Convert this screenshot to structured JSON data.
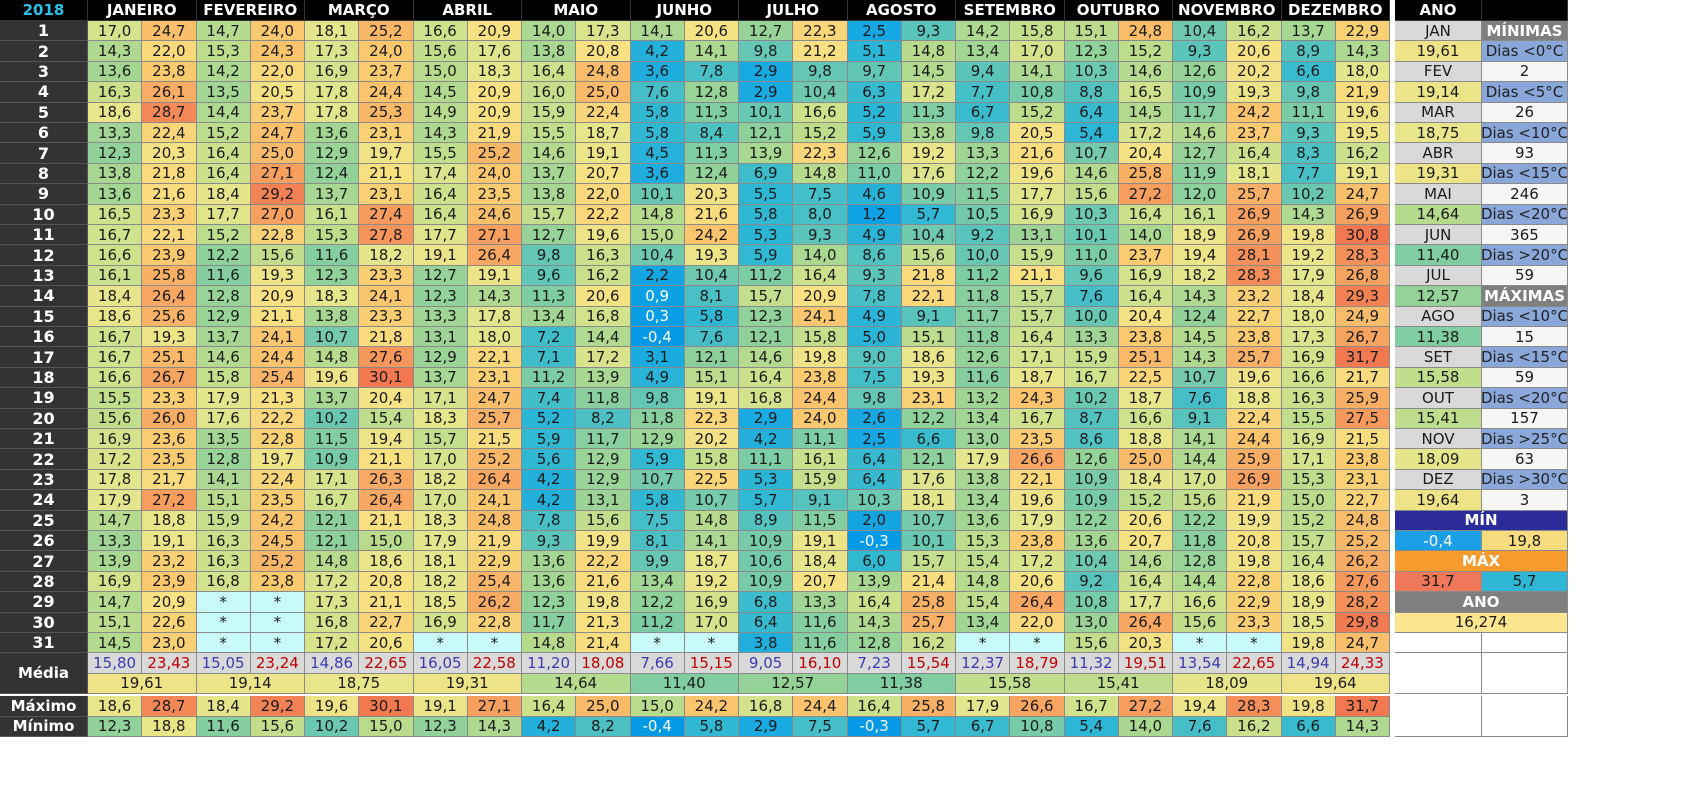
{
  "year": "2018",
  "months": [
    "JANEIRO",
    "FEVEREIRO",
    "MARÇO",
    "ABRIL",
    "MAIO",
    "JUNHO",
    "JULHO",
    "AGOSTO",
    "SETEMBRO",
    "OUTUBRO",
    "NOVEMBRO",
    "DEZEMBRO"
  ],
  "ano_header": "ANO",
  "rows": [
    [
      "17,0",
      "24,7",
      "14,7",
      "24,0",
      "18,1",
      "25,2",
      "16,6",
      "20,9",
      "14,0",
      "17,3",
      "14,1",
      "20,6",
      "12,7",
      "22,3",
      "2,5",
      "9,3",
      "14,2",
      "15,8",
      "15,1",
      "24,8",
      "10,4",
      "16,2",
      "13,7",
      "22,9"
    ],
    [
      "14,3",
      "22,0",
      "15,3",
      "24,3",
      "17,3",
      "24,0",
      "15,6",
      "17,6",
      "13,8",
      "20,8",
      "4,2",
      "14,1",
      "9,8",
      "21,2",
      "5,1",
      "14,8",
      "13,4",
      "17,0",
      "12,3",
      "15,2",
      "9,3",
      "20,6",
      "8,9",
      "14,3"
    ],
    [
      "13,6",
      "23,8",
      "14,2",
      "22,0",
      "16,9",
      "23,7",
      "15,0",
      "18,3",
      "16,4",
      "24,8",
      "3,6",
      "7,8",
      "2,9",
      "9,8",
      "9,7",
      "14,5",
      "9,4",
      "14,1",
      "10,3",
      "14,6",
      "12,6",
      "20,2",
      "6,6",
      "18,0"
    ],
    [
      "16,3",
      "26,1",
      "13,5",
      "20,5",
      "17,8",
      "24,4",
      "14,5",
      "20,9",
      "16,0",
      "25,0",
      "7,6",
      "12,8",
      "2,9",
      "10,4",
      "6,3",
      "17,2",
      "7,7",
      "10,8",
      "8,8",
      "16,5",
      "10,9",
      "19,3",
      "9,8",
      "21,9"
    ],
    [
      "18,6",
      "28,7",
      "14,4",
      "23,7",
      "17,8",
      "25,3",
      "14,9",
      "20,9",
      "15,9",
      "22,4",
      "5,8",
      "11,3",
      "10,1",
      "16,6",
      "5,2",
      "11,3",
      "6,7",
      "15,2",
      "6,4",
      "14,5",
      "11,7",
      "24,2",
      "11,1",
      "19,6"
    ],
    [
      "13,3",
      "22,4",
      "15,2",
      "24,7",
      "13,6",
      "23,1",
      "14,3",
      "21,9",
      "15,5",
      "18,7",
      "5,8",
      "8,4",
      "12,1",
      "15,2",
      "5,9",
      "13,8",
      "9,8",
      "20,5",
      "5,4",
      "17,2",
      "14,6",
      "23,7",
      "9,3",
      "19,5"
    ],
    [
      "12,3",
      "20,3",
      "16,4",
      "25,0",
      "12,9",
      "19,7",
      "15,5",
      "25,2",
      "14,6",
      "19,1",
      "4,5",
      "11,3",
      "13,9",
      "22,3",
      "12,6",
      "19,2",
      "13,3",
      "21,6",
      "10,7",
      "20,4",
      "12,7",
      "16,4",
      "8,3",
      "16,2"
    ],
    [
      "13,8",
      "21,8",
      "16,4",
      "27,1",
      "12,4",
      "21,1",
      "17,4",
      "24,0",
      "13,7",
      "20,7",
      "3,6",
      "12,4",
      "6,9",
      "14,8",
      "11,0",
      "17,6",
      "12,2",
      "19,6",
      "14,6",
      "25,8",
      "11,9",
      "18,1",
      "7,7",
      "19,1"
    ],
    [
      "13,6",
      "21,6",
      "18,4",
      "29,2",
      "13,7",
      "23,1",
      "16,4",
      "23,5",
      "13,8",
      "22,0",
      "10,1",
      "20,3",
      "5,5",
      "7,5",
      "4,6",
      "10,9",
      "11,5",
      "17,7",
      "15,6",
      "27,2",
      "12,0",
      "25,7",
      "10,2",
      "24,7"
    ],
    [
      "16,5",
      "23,3",
      "17,7",
      "27,0",
      "16,1",
      "27,4",
      "16,4",
      "24,6",
      "15,7",
      "22,2",
      "14,8",
      "21,6",
      "5,8",
      "8,0",
      "1,2",
      "5,7",
      "10,5",
      "16,9",
      "10,3",
      "16,4",
      "16,1",
      "26,9",
      "14,3",
      "26,9"
    ],
    [
      "16,7",
      "22,1",
      "15,2",
      "22,8",
      "15,3",
      "27,8",
      "17,7",
      "27,1",
      "12,7",
      "19,6",
      "15,0",
      "24,2",
      "5,3",
      "9,3",
      "4,9",
      "10,4",
      "9,2",
      "13,1",
      "10,1",
      "14,0",
      "18,9",
      "26,9",
      "19,8",
      "30,8"
    ],
    [
      "16,6",
      "23,9",
      "12,2",
      "15,6",
      "11,6",
      "18,2",
      "19,1",
      "26,4",
      "9,8",
      "16,3",
      "10,4",
      "19,3",
      "5,9",
      "14,0",
      "8,6",
      "15,6",
      "10,0",
      "15,9",
      "11,0",
      "23,7",
      "19,4",
      "28,1",
      "19,2",
      "28,3"
    ],
    [
      "16,1",
      "25,8",
      "11,6",
      "19,3",
      "12,3",
      "23,3",
      "12,7",
      "19,1",
      "9,6",
      "16,2",
      "2,2",
      "10,4",
      "11,2",
      "16,4",
      "9,3",
      "21,8",
      "11,2",
      "21,1",
      "9,6",
      "16,9",
      "18,2",
      "28,3",
      "17,9",
      "26,8"
    ],
    [
      "18,4",
      "26,4",
      "12,8",
      "20,9",
      "18,3",
      "24,1",
      "12,3",
      "14,3",
      "11,3",
      "20,6",
      "0,9",
      "8,1",
      "15,7",
      "20,9",
      "7,8",
      "22,1",
      "11,8",
      "15,7",
      "7,6",
      "16,4",
      "14,3",
      "23,2",
      "18,4",
      "29,3"
    ],
    [
      "18,6",
      "25,6",
      "12,9",
      "21,1",
      "13,8",
      "23,3",
      "13,3",
      "17,8",
      "13,4",
      "16,8",
      "0,3",
      "5,8",
      "12,3",
      "24,1",
      "4,9",
      "9,1",
      "11,7",
      "15,7",
      "10,0",
      "20,4",
      "12,4",
      "22,7",
      "18,0",
      "24,9"
    ],
    [
      "16,7",
      "19,3",
      "13,7",
      "24,1",
      "10,7",
      "21,8",
      "13,1",
      "18,0",
      "7,2",
      "14,4",
      "-0,4",
      "7,6",
      "12,1",
      "15,8",
      "5,0",
      "15,1",
      "11,8",
      "16,4",
      "13,3",
      "23,8",
      "14,5",
      "23,8",
      "17,3",
      "26,7"
    ],
    [
      "16,7",
      "25,1",
      "14,6",
      "24,4",
      "14,8",
      "27,6",
      "12,9",
      "22,1",
      "7,1",
      "17,2",
      "3,1",
      "12,1",
      "14,6",
      "19,8",
      "9,0",
      "18,6",
      "12,6",
      "17,1",
      "15,9",
      "25,1",
      "14,3",
      "25,7",
      "16,9",
      "31,7"
    ],
    [
      "16,6",
      "26,7",
      "15,8",
      "25,4",
      "19,6",
      "30,1",
      "13,7",
      "23,1",
      "11,2",
      "13,9",
      "4,9",
      "15,1",
      "16,4",
      "23,8",
      "7,5",
      "19,3",
      "11,6",
      "18,7",
      "16,7",
      "22,5",
      "10,7",
      "19,6",
      "16,6",
      "21,7"
    ],
    [
      "15,5",
      "23,3",
      "17,9",
      "21,3",
      "13,7",
      "20,4",
      "17,1",
      "24,7",
      "7,4",
      "11,8",
      "9,8",
      "19,1",
      "16,8",
      "24,4",
      "9,8",
      "23,1",
      "13,2",
      "24,3",
      "10,2",
      "18,7",
      "7,6",
      "18,8",
      "16,3",
      "25,9"
    ],
    [
      "15,6",
      "26,0",
      "17,6",
      "22,2",
      "10,2",
      "15,4",
      "18,3",
      "25,7",
      "5,2",
      "8,2",
      "11,8",
      "22,3",
      "2,9",
      "24,0",
      "2,6",
      "12,2",
      "13,4",
      "16,7",
      "8,7",
      "16,6",
      "9,1",
      "22,4",
      "15,5",
      "27,5"
    ],
    [
      "16,9",
      "23,6",
      "13,5",
      "22,8",
      "11,5",
      "19,4",
      "15,7",
      "21,5",
      "5,9",
      "11,7",
      "12,9",
      "20,2",
      "4,2",
      "11,1",
      "2,5",
      "6,6",
      "13,0",
      "23,5",
      "8,6",
      "18,8",
      "14,1",
      "24,4",
      "16,9",
      "21,5"
    ],
    [
      "17,2",
      "23,5",
      "12,8",
      "19,7",
      "10,9",
      "21,1",
      "17,0",
      "25,2",
      "5,6",
      "12,9",
      "5,9",
      "15,8",
      "11,1",
      "16,1",
      "6,4",
      "12,1",
      "17,9",
      "26,6",
      "12,6",
      "25,0",
      "14,4",
      "25,9",
      "17,1",
      "23,8"
    ],
    [
      "17,8",
      "21,7",
      "14,1",
      "22,4",
      "17,1",
      "26,3",
      "18,2",
      "26,4",
      "4,2",
      "12,9",
      "10,7",
      "22,5",
      "5,3",
      "15,9",
      "6,4",
      "17,6",
      "13,8",
      "22,1",
      "10,9",
      "18,4",
      "17,0",
      "26,9",
      "15,3",
      "23,1"
    ],
    [
      "17,9",
      "27,2",
      "15,1",
      "23,5",
      "16,7",
      "26,4",
      "17,0",
      "24,1",
      "4,2",
      "13,1",
      "5,8",
      "10,7",
      "5,7",
      "9,1",
      "10,3",
      "18,1",
      "13,4",
      "19,6",
      "10,9",
      "15,2",
      "15,6",
      "21,9",
      "15,0",
      "22,7"
    ],
    [
      "14,7",
      "18,8",
      "15,9",
      "24,2",
      "12,1",
      "21,1",
      "18,3",
      "24,8",
      "7,8",
      "15,6",
      "7,5",
      "14,8",
      "8,9",
      "11,5",
      "2,0",
      "10,7",
      "13,6",
      "17,9",
      "12,2",
      "20,6",
      "12,2",
      "19,9",
      "15,2",
      "24,8"
    ],
    [
      "13,3",
      "19,1",
      "16,3",
      "24,5",
      "12,1",
      "15,0",
      "17,9",
      "21,9",
      "9,3",
      "19,9",
      "8,1",
      "14,1",
      "10,9",
      "19,1",
      "-0,3",
      "10,1",
      "15,3",
      "23,8",
      "13,6",
      "20,7",
      "11,8",
      "20,8",
      "15,7",
      "25,2"
    ],
    [
      "13,9",
      "23,2",
      "16,3",
      "25,2",
      "14,8",
      "18,6",
      "18,1",
      "22,9",
      "13,6",
      "22,2",
      "9,9",
      "18,7",
      "10,6",
      "18,4",
      "6,0",
      "15,7",
      "15,4",
      "17,2",
      "10,4",
      "14,6",
      "12,8",
      "19,8",
      "16,4",
      "26,2"
    ],
    [
      "16,9",
      "23,9",
      "16,8",
      "23,8",
      "17,2",
      "20,8",
      "18,2",
      "25,4",
      "13,6",
      "21,6",
      "13,4",
      "19,2",
      "10,9",
      "20,7",
      "13,9",
      "21,4",
      "14,8",
      "20,6",
      "9,2",
      "16,4",
      "14,4",
      "22,8",
      "18,6",
      "27,6"
    ],
    [
      "14,7",
      "20,9",
      "*",
      "*",
      "17,3",
      "21,1",
      "18,5",
      "26,2",
      "12,3",
      "19,8",
      "12,2",
      "16,9",
      "6,8",
      "13,3",
      "16,4",
      "25,8",
      "15,4",
      "26,4",
      "10,8",
      "17,7",
      "16,6",
      "22,9",
      "18,9",
      "28,2"
    ],
    [
      "15,1",
      "22,6",
      "*",
      "*",
      "16,8",
      "22,7",
      "16,9",
      "22,8",
      "11,7",
      "21,3",
      "11,2",
      "17,0",
      "6,4",
      "11,6",
      "14,3",
      "25,7",
      "13,4",
      "22,0",
      "13,0",
      "26,4",
      "15,6",
      "23,3",
      "18,5",
      "29,8"
    ],
    [
      "14,5",
      "23,0",
      "*",
      "*",
      "17,2",
      "20,6",
      "*",
      "*",
      "14,8",
      "21,4",
      "*",
      "*",
      "3,8",
      "11,6",
      "12,8",
      "16,2",
      "*",
      "*",
      "15,6",
      "20,3",
      "*",
      "*",
      "19,8",
      "24,7"
    ]
  ],
  "media_label": "Média",
  "media_pairs": [
    "15,80",
    "23,43",
    "15,05",
    "23,24",
    "14,86",
    "22,65",
    "16,05",
    "22,58",
    "11,20",
    "18,08",
    "7,66",
    "15,15",
    "9,05",
    "16,10",
    "7,23",
    "15,54",
    "12,37",
    "18,79",
    "11,32",
    "19,51",
    "13,54",
    "22,65",
    "14,94",
    "24,33"
  ],
  "media_all": [
    "19,61",
    "19,14",
    "18,75",
    "19,31",
    "14,64",
    "11,40",
    "12,57",
    "11,38",
    "15,58",
    "15,41",
    "18,09",
    "19,64"
  ],
  "maximo_label": "Máximo",
  "maximo": [
    "18,6",
    "28,7",
    "18,4",
    "29,2",
    "19,6",
    "30,1",
    "19,1",
    "27,1",
    "16,4",
    "25,0",
    "15,0",
    "24,2",
    "16,8",
    "24,4",
    "16,4",
    "25,8",
    "17,9",
    "26,6",
    "16,7",
    "27,2",
    "19,4",
    "28,3",
    "19,8",
    "31,7"
  ],
  "minimo_label": "Mínimo",
  "minimo": [
    "12,3",
    "18,8",
    "11,6",
    "15,6",
    "10,2",
    "15,0",
    "12,3",
    "14,3",
    "4,2",
    "8,2",
    "-0,4",
    "5,8",
    "2,9",
    "7,5",
    "-0,3",
    "5,7",
    "6,7",
    "10,8",
    "5,4",
    "14,0",
    "7,6",
    "16,2",
    "6,6",
    "14,3"
  ],
  "side_rows": [
    {
      "l": "JAN",
      "lt": "month",
      "r": "MÍNIMAS",
      "rt": "sechdr"
    },
    {
      "l": "19,61",
      "lt": "avg",
      "r": "Dias <0°C",
      "rt": "ylabel"
    },
    {
      "l": "FEV",
      "lt": "month",
      "r": "2",
      "rt": "pale"
    },
    {
      "l": "19,14",
      "lt": "avg",
      "r": "Dias <5°C",
      "rt": "ylabel"
    },
    {
      "l": "MAR",
      "lt": "month",
      "r": "26",
      "rt": "pale"
    },
    {
      "l": "18,75",
      "lt": "avg",
      "r": "Dias <10°C",
      "rt": "ylabel"
    },
    {
      "l": "ABR",
      "lt": "month",
      "r": "93",
      "rt": "pale"
    },
    {
      "l": "19,31",
      "lt": "avg",
      "r": "Dias <15°C",
      "rt": "ylabel"
    },
    {
      "l": "MAI",
      "lt": "month",
      "r": "246",
      "rt": "pale"
    },
    {
      "l": "14,64",
      "lt": "avg",
      "r": "Dias <20°C",
      "rt": "ylabel"
    },
    {
      "l": "JUN",
      "lt": "month",
      "r": "365",
      "rt": "pale"
    },
    {
      "l": "11,40",
      "lt": "avg",
      "r": "Dias >20°C",
      "rt": "ylabel"
    },
    {
      "l": "JUL",
      "lt": "month",
      "r": "59",
      "rt": "pale"
    },
    {
      "l": "12,57",
      "lt": "avg",
      "r": "MÁXIMAS",
      "rt": "sechdr"
    },
    {
      "l": "AGO",
      "lt": "month",
      "r": "Dias <10°C",
      "rt": "ylabel"
    },
    {
      "l": "11,38",
      "lt": "avg",
      "r": "15",
      "rt": "pale"
    },
    {
      "l": "SET",
      "lt": "month",
      "r": "Dias <15°C",
      "rt": "ylabel"
    },
    {
      "l": "15,58",
      "lt": "avg",
      "r": "59",
      "rt": "pale"
    },
    {
      "l": "OUT",
      "lt": "month",
      "r": "Dias <20°C",
      "rt": "ylabel"
    },
    {
      "l": "15,41",
      "lt": "avg",
      "r": "157",
      "rt": "pale"
    },
    {
      "l": "NOV",
      "lt": "month",
      "r": "Dias >25°C",
      "rt": "ylabel"
    },
    {
      "l": "18,09",
      "lt": "avg",
      "r": "63",
      "rt": "pale"
    },
    {
      "l": "DEZ",
      "lt": "month",
      "r": "Dias >30°C",
      "rt": "ylabel"
    },
    {
      "l": "19,64",
      "lt": "avg",
      "r": "3",
      "rt": "pale"
    }
  ],
  "summary": {
    "min_label": "MÍN",
    "min_values": [
      "-0,4",
      "19,8"
    ],
    "max_label": "MÁX",
    "max_values": [
      "31,7",
      "5,7"
    ],
    "ano_label": "ANO",
    "ano_value": "16,274"
  },
  "colors": {
    "header_bg": "#000000",
    "year_text": "#29c3ea",
    "day_bg": "#333333",
    "missing_bg": "#c8fafa",
    "min_header": "#2b2b99",
    "max_header": "#f79b2e"
  }
}
